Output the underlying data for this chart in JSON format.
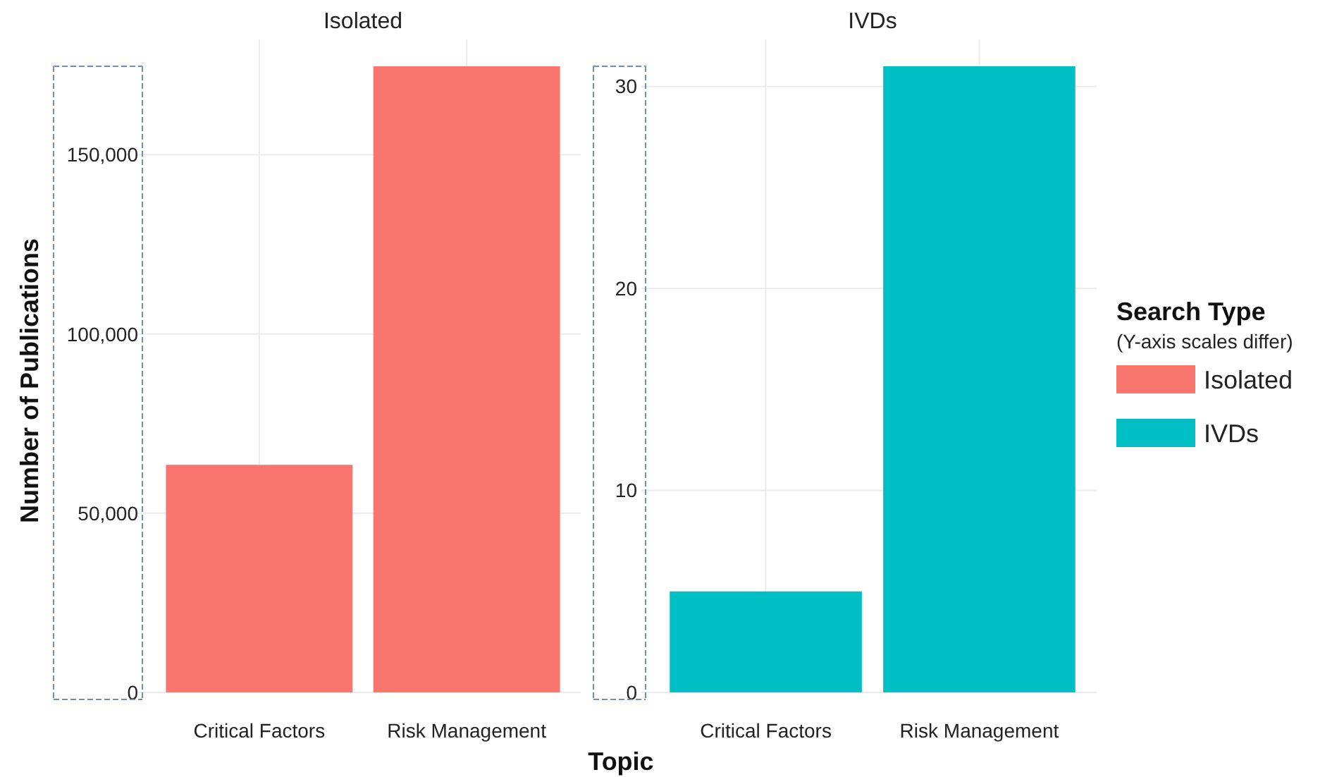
{
  "chart_data": [
    {
      "type": "bar",
      "title": "Isolated",
      "xlabel": "Topic",
      "ylabel": "Number of Publications",
      "categories": [
        "Critical Factors",
        "Risk Management"
      ],
      "series": [
        {
          "name": "Isolated",
          "color": "#f8766d",
          "values": [
            63500,
            174700
          ]
        }
      ],
      "ylim": [
        0,
        174700
      ],
      "yticks": [
        {
          "value": 0,
          "label": "0"
        },
        {
          "value": 50000,
          "label": "50,000"
        },
        {
          "value": 100000,
          "label": "100,000"
        },
        {
          "value": 150000,
          "label": "150,000"
        }
      ],
      "grid": true,
      "legend": "right",
      "legend_title": "Search Type",
      "annotations": [
        "(Y-axis scales differ)"
      ]
    },
    {
      "type": "bar",
      "title": "IVDs",
      "categories": [
        "Critical Factors",
        "Risk Management"
      ],
      "series": [
        {
          "name": "IVDs",
          "color": "#00bfc4",
          "values": [
            5,
            31
          ]
        }
      ],
      "ylim": [
        0,
        31
      ],
      "yticks": [
        0,
        10,
        20,
        30
      ],
      "grid": true
    }
  ]
}
